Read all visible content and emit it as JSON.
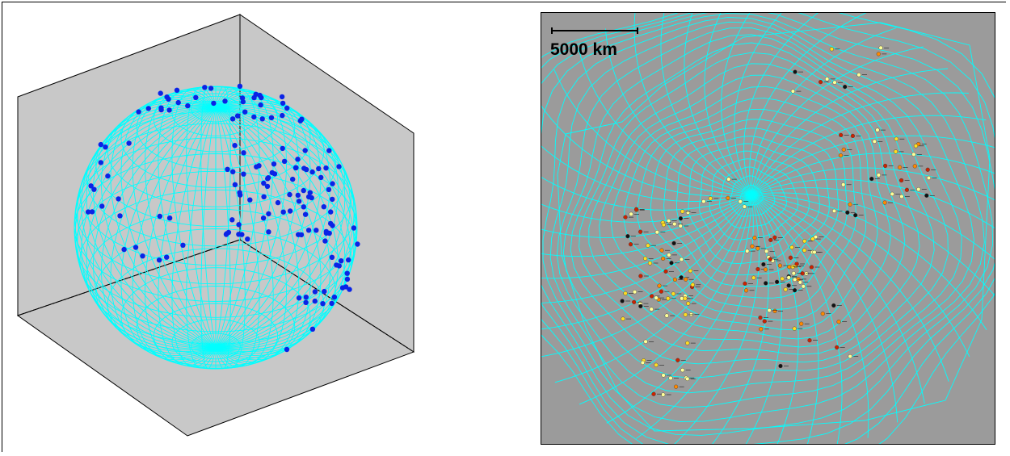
{
  "colors": {
    "background": "#ffffff",
    "box_fill": "#c8c8c8",
    "mesh": "#00ffff",
    "stations_globe": "#0a23e6",
    "map_background": "#9b9b9b",
    "marker_light": "#ffff99",
    "marker_yellow": "#ffdd22",
    "marker_orange": "#ff8800",
    "marker_red": "#cc2200",
    "marker_dark": "#111111"
  },
  "globe": {
    "icon": "sphere-wireframe",
    "mesh_style": "latitude-longitude grid"
  },
  "map": {
    "scale_bar": {
      "label": "5000 km"
    },
    "icon": "warped-mesh"
  }
}
